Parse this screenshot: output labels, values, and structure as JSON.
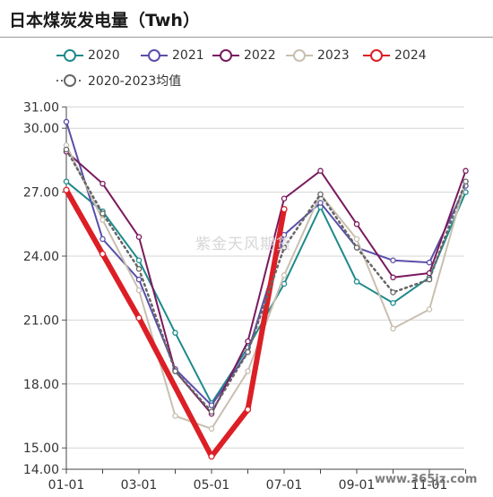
{
  "title": "日本煤炭发电量（Twh）",
  "watermark": "紫金天风期货",
  "site_mark": "www.365jz.com",
  "chart_data": {
    "type": "line",
    "title": "日本煤炭发电量（Twh）",
    "xlabel": "",
    "ylabel": "",
    "x": [
      "01-01",
      "02-01",
      "03-01",
      "04-01",
      "05-01",
      "06-01",
      "07-01",
      "08-01",
      "09-01",
      "10-01",
      "11-01",
      "12-01"
    ],
    "x_ticks": [
      "01-01",
      "03-01",
      "05-01",
      "07-01",
      "09-01",
      "11-01"
    ],
    "y_ticks": [
      14.0,
      15.0,
      18.0,
      21.0,
      24.0,
      27.0,
      30.0,
      31.0
    ],
    "ylim": [
      14,
      31
    ],
    "grid": "horizontal",
    "legend": "top",
    "series": [
      {
        "name": "2020",
        "color": "#1e8a8a",
        "style": "solid",
        "width": 2,
        "marker": true,
        "values": [
          27.5,
          26.1,
          23.8,
          20.4,
          17.1,
          19.7,
          22.7,
          26.3,
          22.8,
          21.8,
          23.0,
          27.0
        ]
      },
      {
        "name": "2021",
        "color": "#5a4fa8",
        "style": "solid",
        "width": 2,
        "marker": true,
        "values": [
          30.3,
          24.8,
          22.9,
          18.7,
          17.0,
          19.5,
          25.0,
          26.5,
          24.4,
          23.8,
          23.7,
          27.3
        ]
      },
      {
        "name": "2022",
        "color": "#7a1a5e",
        "style": "solid",
        "width": 2,
        "marker": true,
        "values": [
          28.9,
          27.4,
          24.9,
          18.6,
          16.6,
          20.0,
          26.7,
          28.0,
          25.5,
          23.0,
          23.2,
          28.0
        ]
      },
      {
        "name": "2023",
        "color": "#c8bfb0",
        "style": "solid",
        "width": 2,
        "marker": true,
        "values": [
          29.2,
          25.7,
          22.4,
          16.5,
          15.9,
          18.6,
          23.1,
          26.9,
          24.8,
          20.6,
          21.5,
          27.5
        ]
      },
      {
        "name": "2024",
        "color": "#dc1f26",
        "style": "solid",
        "width": 6,
        "marker": true,
        "values": [
          27.1,
          24.1,
          21.1,
          null,
          14.6,
          16.8,
          26.2,
          null,
          null,
          null,
          null,
          null
        ]
      },
      {
        "name": "2020-2023均值",
        "color": "#666666",
        "style": "dotted",
        "width": 2.5,
        "marker": true,
        "values": [
          29.0,
          26.0,
          23.4,
          18.6,
          16.7,
          19.5,
          24.4,
          26.9,
          24.4,
          22.3,
          22.9,
          27.5
        ]
      }
    ]
  }
}
